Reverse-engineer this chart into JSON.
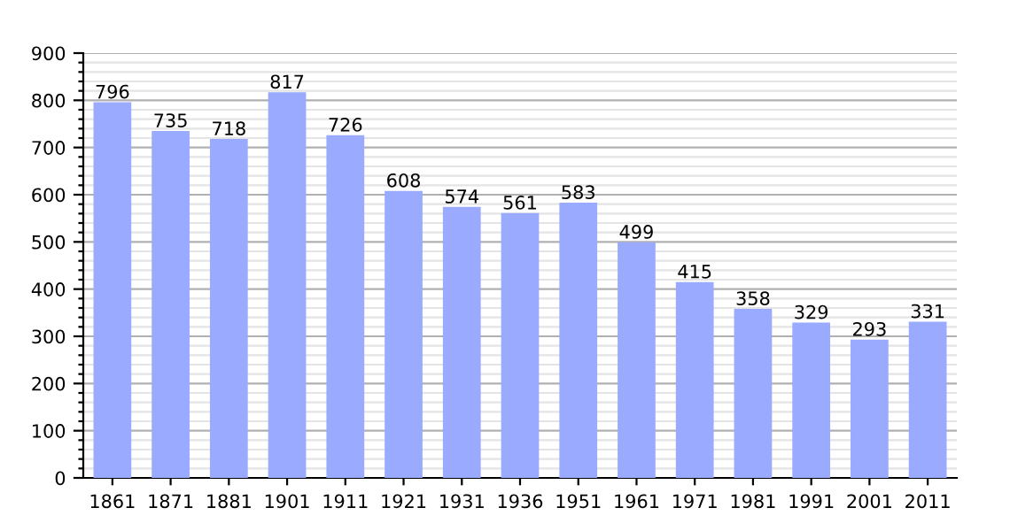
{
  "chart_data": {
    "type": "bar",
    "categories": [
      "1861",
      "1871",
      "1881",
      "1901",
      "1911",
      "1921",
      "1931",
      "1936",
      "1951",
      "1961",
      "1971",
      "1981",
      "1991",
      "2001",
      "2011"
    ],
    "values": [
      796,
      735,
      718,
      817,
      726,
      608,
      574,
      561,
      583,
      499,
      415,
      358,
      329,
      293,
      331
    ],
    "color": "#99aaff",
    "data_labels": true,
    "grid": "y",
    "ylim": [
      0,
      900
    ],
    "yticks": [
      0,
      {
        "value": 20,
        "label": null
      },
      {
        "value": 40,
        "label": null
      },
      {
        "value": 60,
        "label": null
      },
      {
        "value": 80,
        "label": null
      },
      100,
      {
        "value": 120,
        "label": null
      },
      {
        "value": 140,
        "label": null
      },
      {
        "value": 160,
        "label": null
      },
      {
        "value": 180,
        "label": null
      },
      200,
      {
        "value": 220,
        "label": null
      },
      {
        "value": 240,
        "label": null
      },
      {
        "value": 260,
        "label": null
      },
      {
        "value": 280,
        "label": null
      },
      300,
      {
        "value": 320,
        "label": null
      },
      {
        "value": 340,
        "label": null
      },
      {
        "value": 360,
        "label": null
      },
      {
        "value": 380,
        "label": null
      },
      400,
      {
        "value": 420,
        "label": null
      },
      {
        "value": 440,
        "label": null
      },
      {
        "value": 460,
        "label": null
      },
      {
        "value": 480,
        "label": null
      },
      500,
      {
        "value": 520,
        "label": null
      },
      {
        "value": 540,
        "label": null
      },
      {
        "value": 560,
        "label": null
      },
      {
        "value": 580,
        "label": null
      },
      600,
      {
        "value": 620,
        "label": null
      },
      {
        "value": 640,
        "label": null
      },
      {
        "value": 660,
        "label": null
      },
      {
        "value": 680,
        "label": null
      },
      700,
      {
        "value": 720,
        "label": null
      },
      {
        "value": 740,
        "label": null
      },
      {
        "value": 760,
        "label": null
      },
      {
        "value": 780,
        "label": null
      },
      800,
      {
        "value": 820,
        "label": null
      },
      {
        "value": 840,
        "label": null
      },
      {
        "value": 860,
        "label": null
      },
      {
        "value": 880,
        "label": null
      },
      900
    ]
  }
}
